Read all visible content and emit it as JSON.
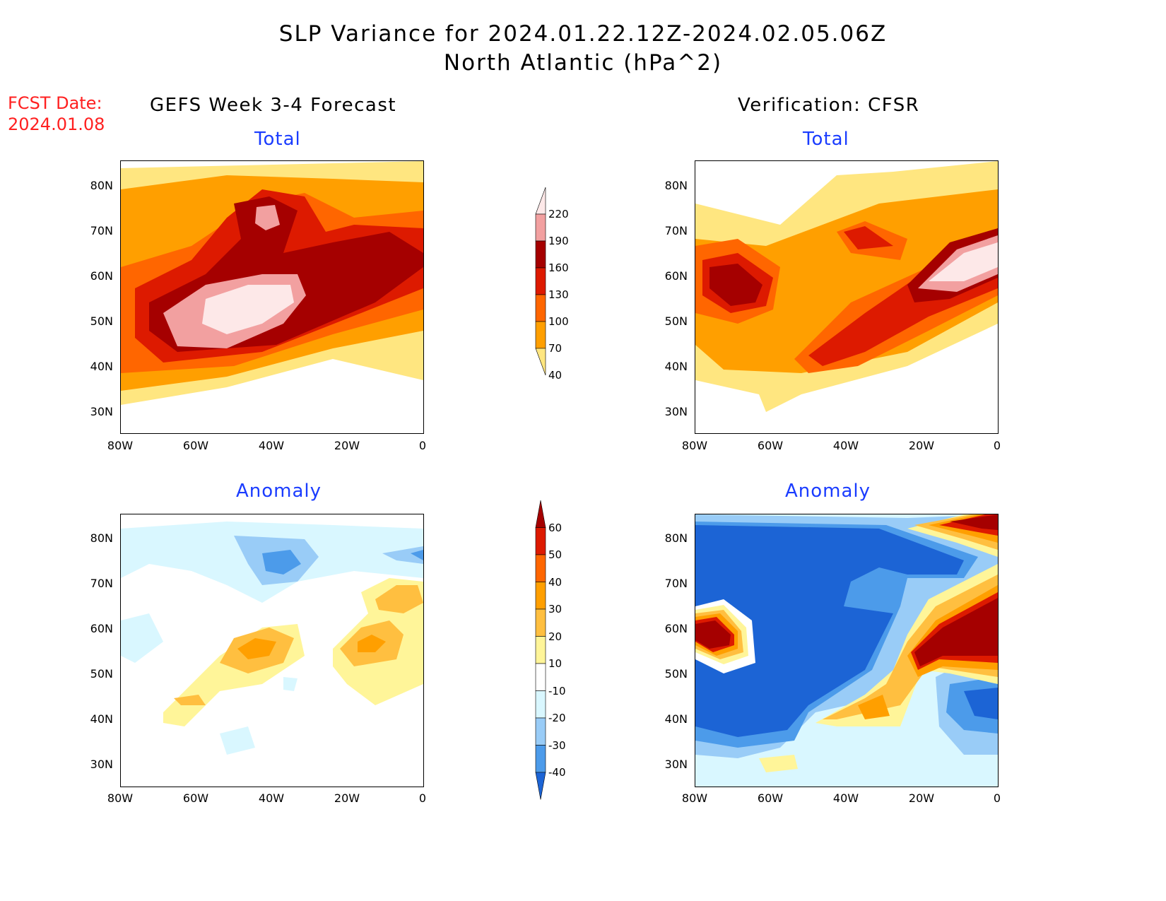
{
  "title": {
    "line1": "SLP Variance for 2024.01.22.12Z-2024.02.05.06Z",
    "line2": "North Atlantic (hPa^2)"
  },
  "fcst": {
    "label": "FCST Date:",
    "date": "2024.01.08"
  },
  "columns": {
    "left": "GEFS Week 3-4 Forecast",
    "right": "Verification: CFSR"
  },
  "panels": {
    "total_label": "Total",
    "anomaly_label": "Anomaly"
  },
  "axes": {
    "lat_labels": [
      "80N",
      "70N",
      "60N",
      "50N",
      "40N",
      "30N"
    ],
    "lon_labels": [
      "80W",
      "60W",
      "40W",
      "20W",
      "0"
    ]
  },
  "colorbars": {
    "total": {
      "levels": [
        "220",
        "190",
        "160",
        "130",
        "100",
        "70",
        "40"
      ],
      "colors": [
        "#fde8e8",
        "#f2a0a0",
        "#a50000",
        "#dd1a00",
        "#ff6600",
        "#ff9f00",
        "#ffe680"
      ]
    },
    "anomaly": {
      "levels": [
        "60",
        "50",
        "40",
        "30",
        "20",
        "10",
        "-10",
        "-20",
        "-30",
        "-40"
      ],
      "colors": [
        "#a50000",
        "#dd1a00",
        "#ff6600",
        "#ff9f00",
        "#ffbf40",
        "#fff599",
        "#ffffff",
        "#d9f7ff",
        "#99ccf7",
        "#4c9bea",
        "#1c64d5"
      ]
    }
  }
}
